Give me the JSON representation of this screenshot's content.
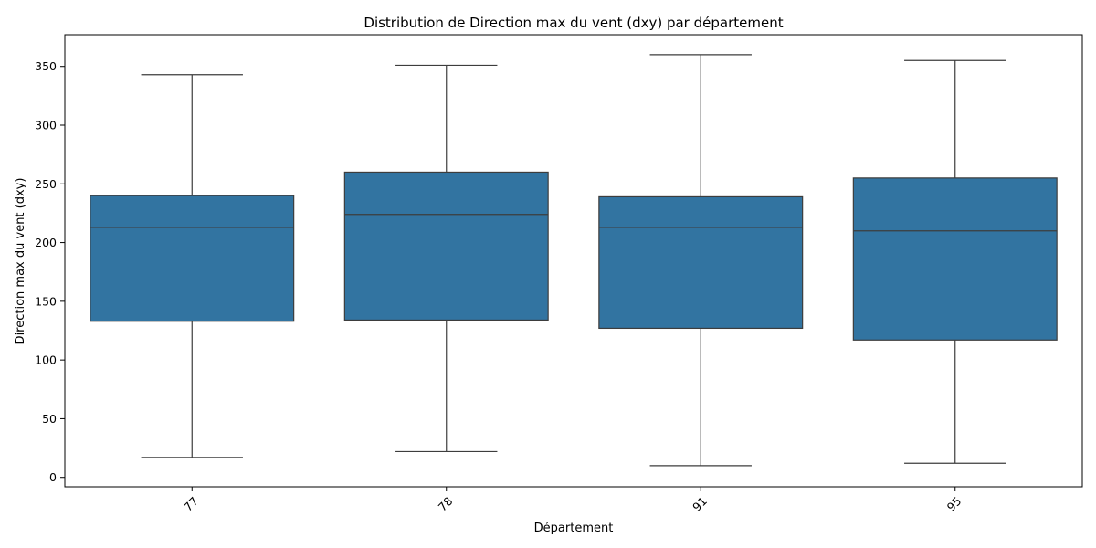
{
  "chart_data": {
    "type": "box",
    "title": "Distribution de Direction max du vent (dxy) par département",
    "xlabel": "Département",
    "ylabel": "Direction max du vent (dxy)",
    "categories": [
      "77",
      "78",
      "91",
      "95"
    ],
    "boxes": [
      {
        "category": "77",
        "whisker_low": 17,
        "q1": 133,
        "median": 213,
        "q3": 240,
        "whisker_high": 343
      },
      {
        "category": "78",
        "whisker_low": 22,
        "q1": 134,
        "median": 224,
        "q3": 260,
        "whisker_high": 351
      },
      {
        "category": "91",
        "whisker_low": 10,
        "q1": 127,
        "median": 213,
        "q3": 239,
        "whisker_high": 360
      },
      {
        "category": "95",
        "whisker_low": 12,
        "q1": 117,
        "median": 210,
        "q3": 255,
        "whisker_high": 355
      }
    ],
    "ylim": [
      -8,
      377
    ],
    "yticks": [
      0,
      50,
      100,
      150,
      200,
      250,
      300,
      350
    ],
    "xtick_rotation": 45,
    "grid": false,
    "legend": false,
    "colors": {
      "box_fill": "#3274a1",
      "line": "#3d3d3d",
      "axis": "#000000"
    }
  }
}
